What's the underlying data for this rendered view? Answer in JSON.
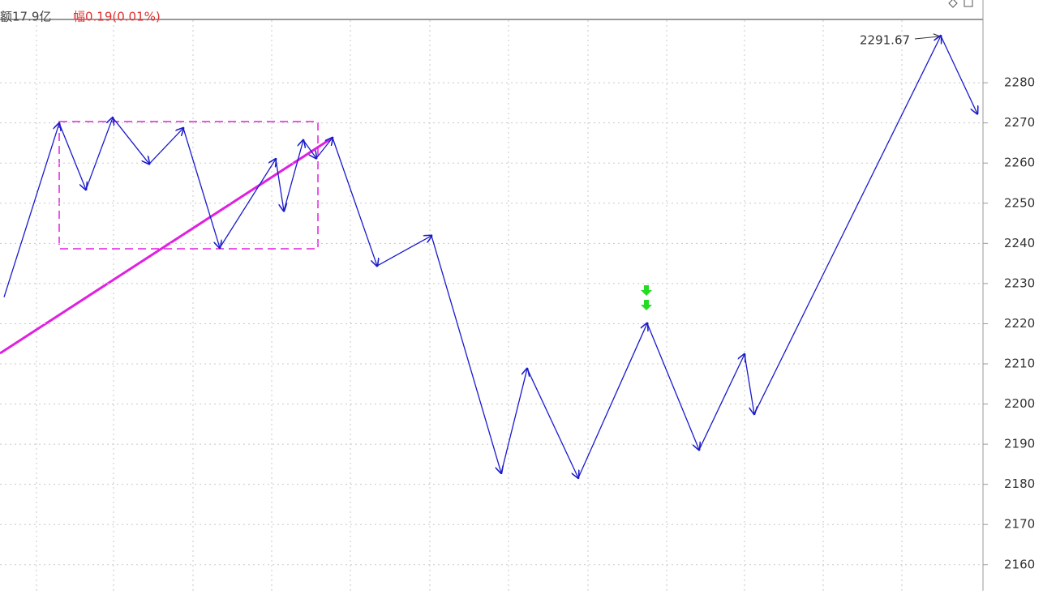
{
  "chart_data": {
    "type": "line",
    "header_amount": "额17.9亿",
    "header_change": "幅0.19(0.01%)",
    "annotation": "2291.67",
    "x": [
      5,
      73,
      106,
      139,
      184,
      226,
      271,
      340,
      350,
      374,
      390,
      410,
      465,
      532,
      618,
      650,
      713,
      798,
      862,
      918,
      930,
      1160,
      1205
    ],
    "series": [
      {
        "name": "zigzag",
        "color": "#1a1acc",
        "values": [
          2226.6,
          2269.9,
          2253.4,
          2271.3,
          2259.8,
          2268.7,
          2238.9,
          2261.0,
          2248.1,
          2265.7,
          2261.2,
          2266.3,
          2234.4,
          2241.9,
          2182.8,
          2208.8,
          2181.6,
          2220.1,
          2188.6,
          2212.4,
          2197.5,
          2291.67,
          2272.3
        ]
      }
    ],
    "xlim": [
      0,
      1210
    ],
    "ylim": [
      2153.5,
      2300.6
    ],
    "yticks": [
      2160,
      2170,
      2180,
      2190,
      2200,
      2210,
      2220,
      2230,
      2240,
      2250,
      2260,
      2270,
      2280
    ],
    "grid": true
  }
}
